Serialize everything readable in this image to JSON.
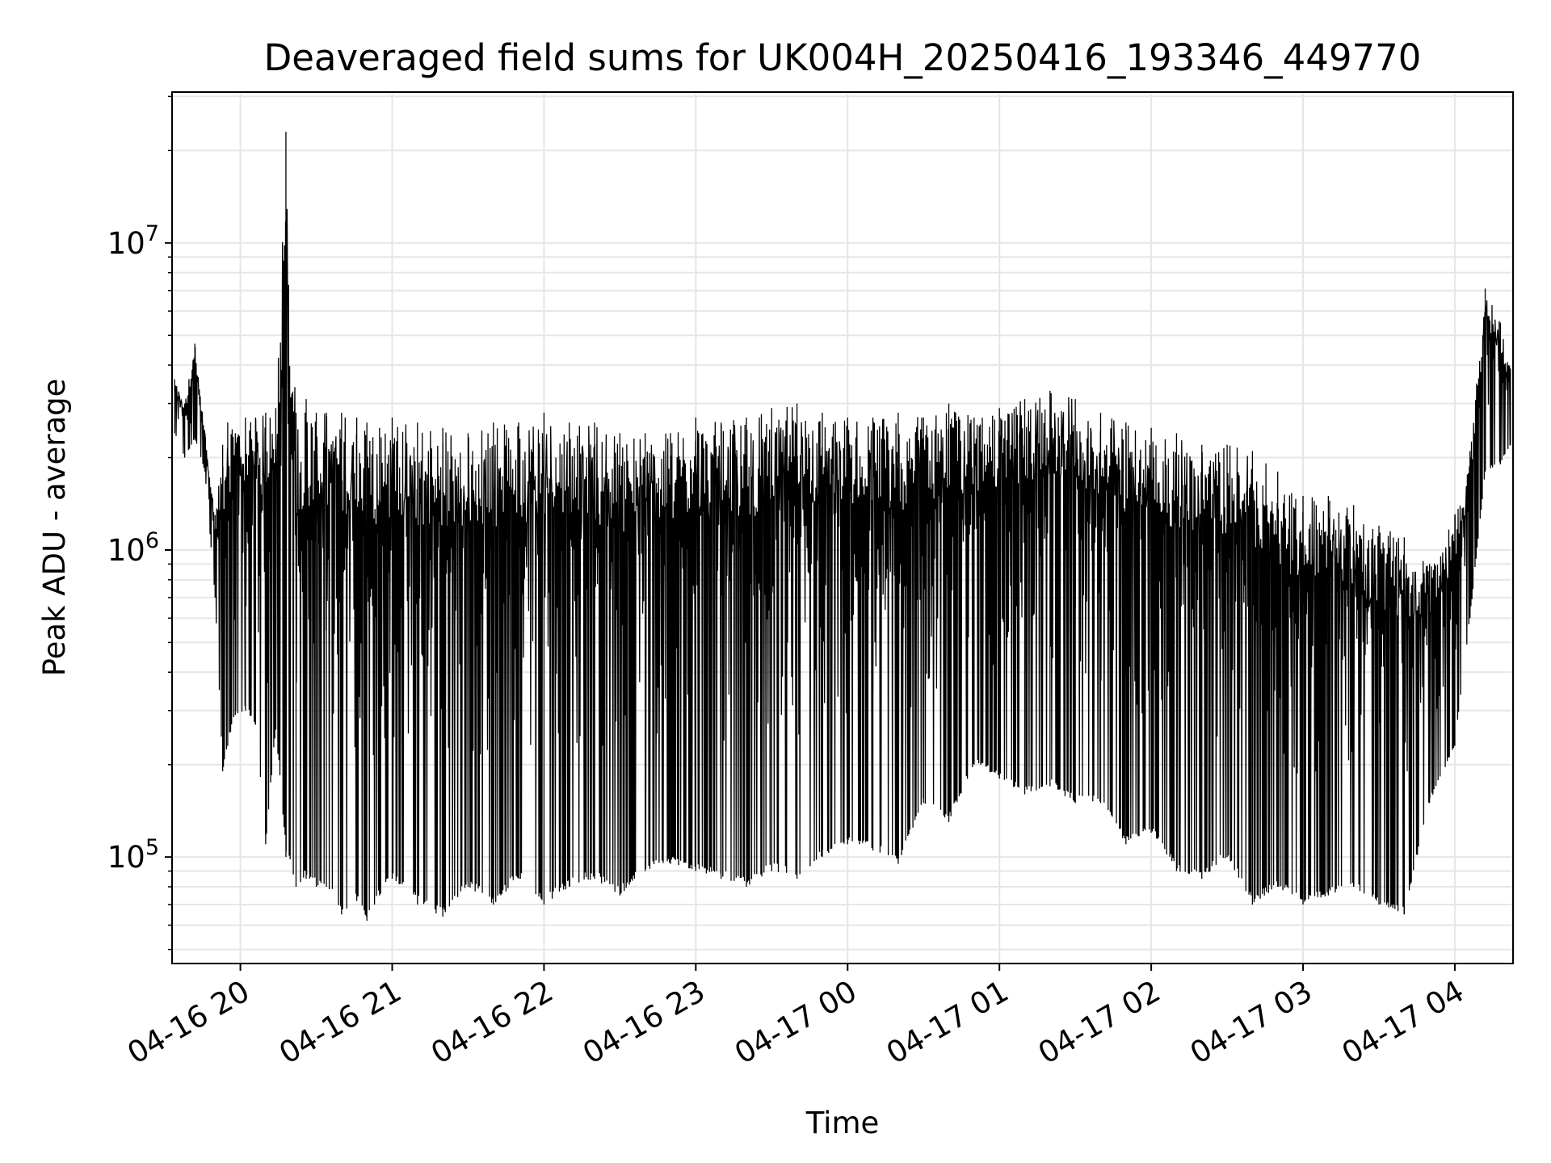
{
  "chart_data": {
    "type": "line",
    "title": "Deaveraged field sums for UK004H_20250416_193346_449770",
    "xlabel": "Time",
    "ylabel": "Peak ADU - average",
    "yscale": "log",
    "xlim": [
      "2025-04-16 19:33",
      "2025-04-17 04:23"
    ],
    "ylim": [
      45000,
      31000000
    ],
    "x_ticks": [
      "04-16 20",
      "04-16 21",
      "04-16 22",
      "04-16 23",
      "04-17 00",
      "04-17 01",
      "04-17 02",
      "04-17 03",
      "04-17 04"
    ],
    "y_ticks": [
      {
        "value": 100000,
        "base": "10",
        "exp": "5"
      },
      {
        "value": 1000000,
        "base": "10",
        "exp": "6"
      },
      {
        "value": 10000000,
        "base": "10",
        "exp": "7"
      }
    ],
    "grid": true,
    "line_color": "#000000",
    "series": [
      {
        "x": [
          "2025-04-16 19:34",
          "2025-04-16 19:38",
          "2025-04-16 19:42",
          "2025-04-16 19:46",
          "2025-04-16 19:50",
          "2025-04-16 19:53",
          "2025-04-16 19:55",
          "2025-04-16 19:58",
          "2025-04-16 20:02",
          "2025-04-16 20:06",
          "2025-04-16 20:10",
          "2025-04-16 20:14",
          "2025-04-16 20:18",
          "2025-04-16 20:22",
          "2025-04-16 20:26",
          "2025-04-16 20:30",
          "2025-04-16 20:34",
          "2025-04-16 20:40",
          "2025-04-16 20:46",
          "2025-04-16 20:50",
          "2025-04-16 20:55",
          "2025-04-16 21:00",
          "2025-04-16 21:10",
          "2025-04-16 21:20",
          "2025-04-16 21:30",
          "2025-04-16 21:40",
          "2025-04-16 21:50",
          "2025-04-16 22:00",
          "2025-04-16 22:10",
          "2025-04-16 22:20",
          "2025-04-16 22:30",
          "2025-04-16 22:40",
          "2025-04-16 22:50",
          "2025-04-16 23:00",
          "2025-04-16 23:10",
          "2025-04-16 23:20",
          "2025-04-16 23:30",
          "2025-04-16 23:40",
          "2025-04-16 23:50",
          "2025-04-17 00:00",
          "2025-04-17 00:10",
          "2025-04-17 00:20",
          "2025-04-17 00:30",
          "2025-04-17 00:40",
          "2025-04-17 00:50",
          "2025-04-17 01:00",
          "2025-04-17 01:10",
          "2025-04-17 01:20",
          "2025-04-17 01:30",
          "2025-04-17 01:40",
          "2025-04-17 01:50",
          "2025-04-17 02:00",
          "2025-04-17 02:10",
          "2025-04-17 02:20",
          "2025-04-17 02:30",
          "2025-04-17 02:40",
          "2025-04-17 02:50",
          "2025-04-17 03:00",
          "2025-04-17 03:10",
          "2025-04-17 03:20",
          "2025-04-17 03:30",
          "2025-04-17 03:40",
          "2025-04-17 03:50",
          "2025-04-17 04:00",
          "2025-04-17 04:06",
          "2025-04-17 04:12",
          "2025-04-17 04:18",
          "2025-04-17 04:22"
        ],
        "y_high": [
          3600000,
          3000000,
          4700000,
          2400000,
          1300000,
          2200000,
          2600000,
          2400000,
          2700000,
          2700000,
          2800000,
          2900000,
          23000000,
          2800000,
          3100000,
          2800000,
          2800000,
          2800000,
          2700000,
          2600000,
          2500000,
          2700000,
          2600000,
          2500000,
          2400000,
          2600000,
          2600000,
          2800000,
          2600000,
          2600000,
          2400000,
          2400000,
          2400000,
          2700000,
          2600000,
          2700000,
          2900000,
          3000000,
          2800000,
          2700000,
          2700000,
          2800000,
          2700000,
          3000000,
          2700000,
          2900000,
          3100000,
          3300000,
          3100000,
          2800000,
          2600000,
          2500000,
          2400000,
          2200000,
          2200000,
          2100000,
          1800000,
          1500000,
          1500000,
          1400000,
          1200000,
          1100000,
          900000,
          1300000,
          2100000,
          7100000,
          5500000,
          3900000
        ],
        "y_low": [
          2400000,
          2000000,
          2300000,
          1800000,
          700000,
          190000,
          230000,
          290000,
          300000,
          270000,
          110000,
          260000,
          100000,
          80000,
          85000,
          80000,
          80000,
          65000,
          72000,
          62000,
          75000,
          85000,
          70000,
          64000,
          80000,
          70000,
          85000,
          70000,
          80000,
          85000,
          75000,
          90000,
          95000,
          90000,
          85000,
          80000,
          90000,
          85000,
          100000,
          110000,
          105000,
          95000,
          150000,
          130000,
          200000,
          180000,
          160000,
          170000,
          150000,
          150000,
          110000,
          120000,
          90000,
          85000,
          100000,
          70000,
          80000,
          70000,
          75000,
          80000,
          70000,
          65000,
          150000,
          230000,
          600000,
          1800000,
          1900000,
          2200000
        ]
      }
    ]
  }
}
